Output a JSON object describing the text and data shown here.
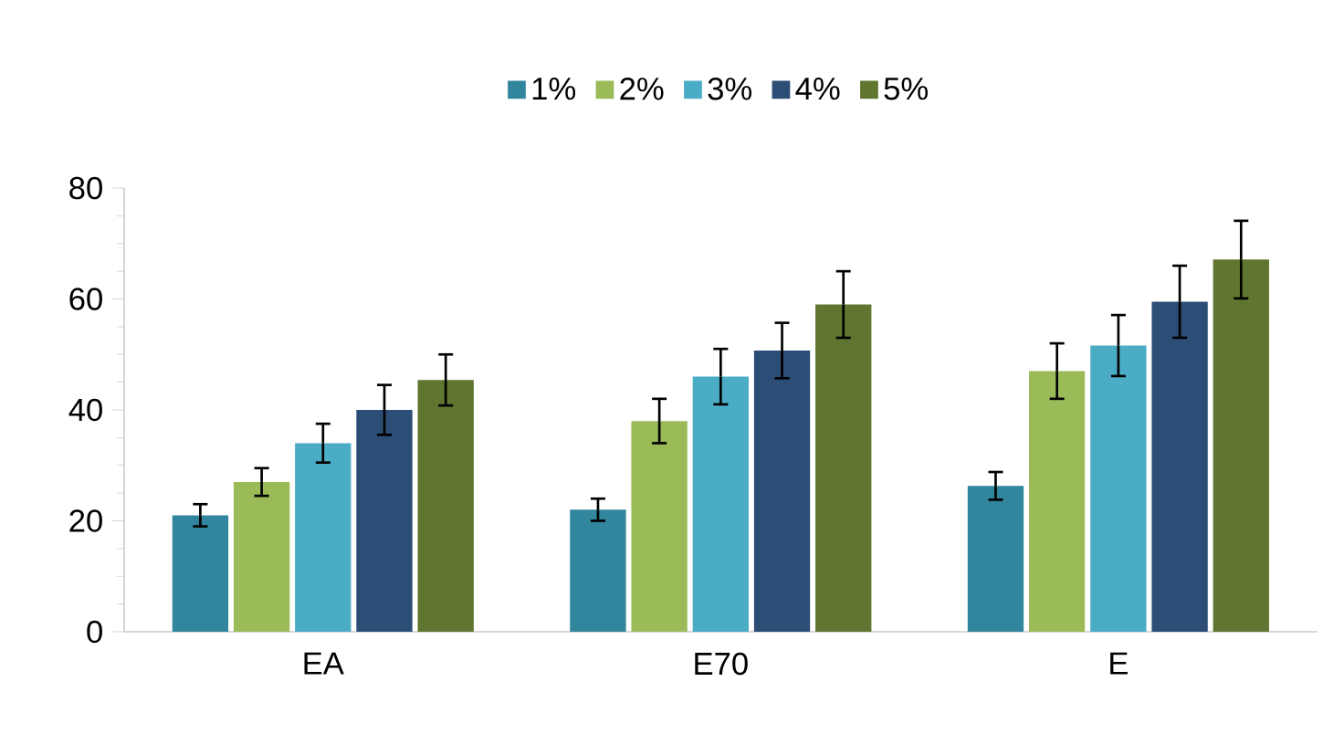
{
  "chart_data": {
    "type": "bar",
    "categories": [
      "EA",
      "E70",
      "E"
    ],
    "series": [
      {
        "name": "1%",
        "color": "#31859c",
        "values": [
          21,
          22,
          26.3
        ],
        "errors": [
          2,
          2,
          2.5
        ]
      },
      {
        "name": "2%",
        "color": "#9bbb59",
        "values": [
          27,
          38,
          47
        ],
        "errors": [
          2.5,
          4,
          5
        ]
      },
      {
        "name": "3%",
        "color": "#4bacc6",
        "values": [
          34,
          46,
          51.6
        ],
        "errors": [
          3.5,
          5,
          5.5
        ]
      },
      {
        "name": "4%",
        "color": "#2c4d75",
        "values": [
          40,
          50.7,
          59.5
        ],
        "errors": [
          4.5,
          5,
          6.5
        ]
      },
      {
        "name": "5%",
        "color": "#5f7530",
        "values": [
          45.4,
          59,
          67.1
        ],
        "errors": [
          4.6,
          6,
          7
        ]
      }
    ],
    "ylim": [
      0,
      80
    ],
    "yticks": [
      0,
      20,
      40,
      60,
      80
    ],
    "grid": false,
    "legend": "top"
  }
}
